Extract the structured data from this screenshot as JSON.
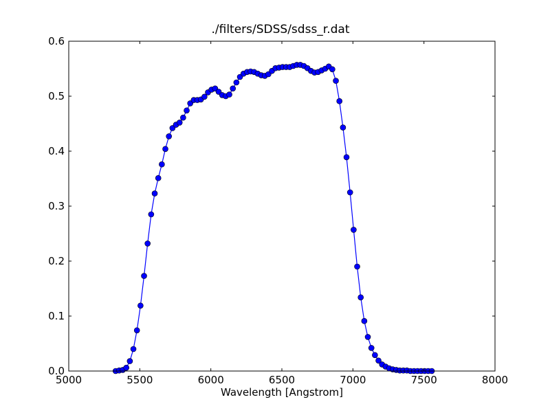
{
  "chart_data": {
    "type": "line",
    "title": "./filters/SDSS/sdss_r.dat",
    "xlabel": "Wavelength [Angstrom]",
    "ylabel": "",
    "xlim": [
      5000,
      8000
    ],
    "ylim": [
      0.0,
      0.6
    ],
    "xticks": [
      5000,
      5500,
      6000,
      6500,
      7000,
      7500,
      8000
    ],
    "xtick_labels": [
      "5000",
      "5500",
      "6000",
      "6500",
      "7000",
      "7500",
      "8000"
    ],
    "yticks": [
      0.0,
      0.1,
      0.2,
      0.3,
      0.4,
      0.5,
      0.6
    ],
    "ytick_labels": [
      "0.0",
      "0.1",
      "0.2",
      "0.3",
      "0.4",
      "0.5",
      "0.6"
    ],
    "grid": false,
    "line_color": "#0000ff",
    "marker_color": "#0000ff",
    "marker_edge_color": "#000000",
    "marker": "circle",
    "series": [
      {
        "x": [
          5330,
          5355,
          5380,
          5405,
          5430,
          5455,
          5480,
          5505,
          5530,
          5555,
          5580,
          5605,
          5630,
          5655,
          5680,
          5705,
          5730,
          5755,
          5780,
          5805,
          5830,
          5855,
          5880,
          5905,
          5930,
          5955,
          5980,
          6005,
          6030,
          6055,
          6080,
          6105,
          6130,
          6155,
          6180,
          6205,
          6230,
          6255,
          6280,
          6305,
          6330,
          6355,
          6380,
          6405,
          6430,
          6455,
          6480,
          6505,
          6530,
          6555,
          6580,
          6605,
          6630,
          6655,
          6680,
          6705,
          6730,
          6755,
          6780,
          6805,
          6830,
          6855,
          6880,
          6905,
          6930,
          6955,
          6980,
          7005,
          7030,
          7055,
          7080,
          7105,
          7130,
          7155,
          7180,
          7205,
          7230,
          7255,
          7280,
          7305,
          7330,
          7355,
          7380,
          7405,
          7430,
          7455,
          7480,
          7505,
          7530,
          7555
        ],
        "y": [
          0.0,
          0.001,
          0.002,
          0.006,
          0.018,
          0.04,
          0.074,
          0.119,
          0.173,
          0.232,
          0.285,
          0.323,
          0.351,
          0.376,
          0.404,
          0.427,
          0.442,
          0.448,
          0.452,
          0.461,
          0.474,
          0.487,
          0.493,
          0.493,
          0.494,
          0.499,
          0.507,
          0.512,
          0.514,
          0.508,
          0.502,
          0.5,
          0.503,
          0.514,
          0.525,
          0.535,
          0.541,
          0.544,
          0.545,
          0.544,
          0.541,
          0.538,
          0.537,
          0.54,
          0.546,
          0.551,
          0.552,
          0.553,
          0.553,
          0.553,
          0.555,
          0.557,
          0.557,
          0.555,
          0.551,
          0.546,
          0.543,
          0.544,
          0.547,
          0.55,
          0.554,
          0.549,
          0.528,
          0.491,
          0.443,
          0.389,
          0.325,
          0.257,
          0.19,
          0.134,
          0.091,
          0.062,
          0.042,
          0.029,
          0.019,
          0.012,
          0.008,
          0.005,
          0.003,
          0.002,
          0.001,
          0.001,
          0.001,
          0.0,
          0.0,
          0.0,
          0.0,
          0.0,
          0.0,
          0.0
        ]
      }
    ]
  }
}
